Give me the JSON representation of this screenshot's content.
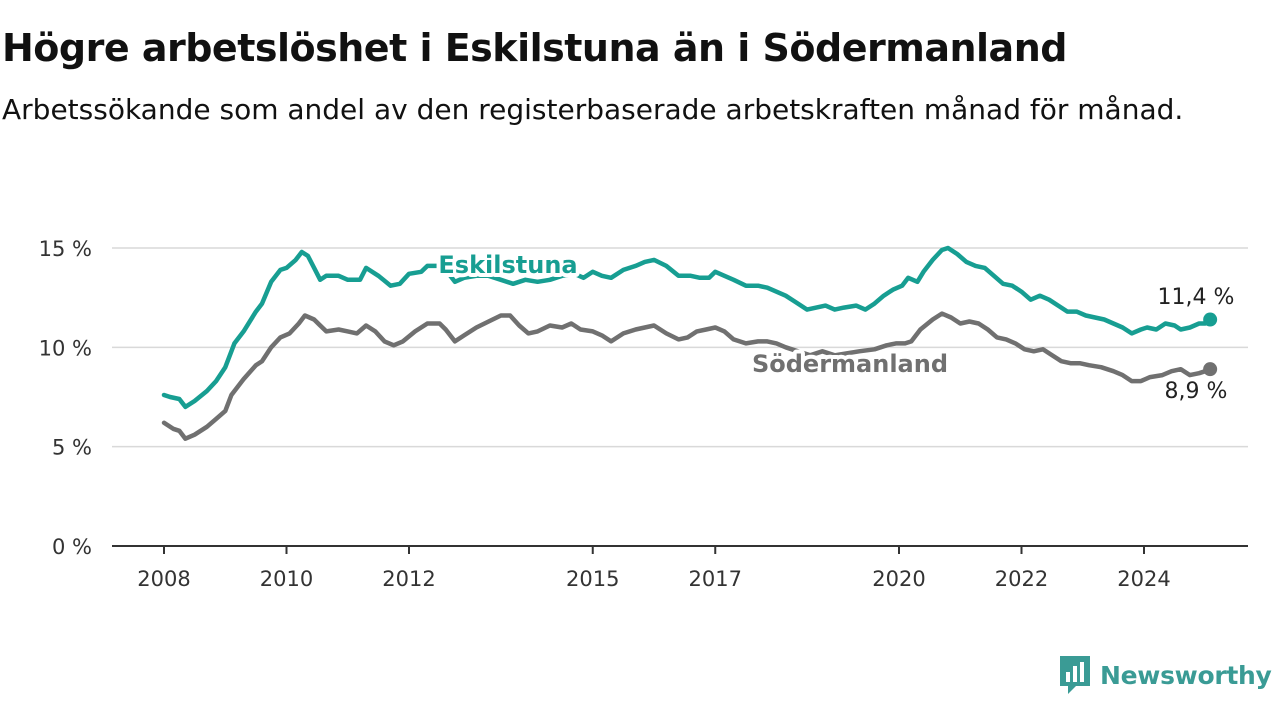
{
  "title": "Högre arbetslöshet i Eskilstuna än i Södermanland",
  "subtitle": "Arbetssökande som andel av den registerbaserade arbetskraften månad för månad.",
  "brand": {
    "name": "Newsworthy",
    "color": "#3a9b95",
    "icon": "newsworthy-logo-icon"
  },
  "chart_data": {
    "type": "line",
    "xlim": [
      2007.5,
      2025.5
    ],
    "ylim": [
      0,
      15
    ],
    "yticks": [
      0,
      5,
      10,
      15
    ],
    "ytick_labels": [
      "0 %",
      "5 %",
      "10 %",
      "15 %"
    ],
    "xticks": [
      2008,
      2010,
      2012,
      2015,
      2017,
      2020,
      2022,
      2024
    ],
    "xtick_labels": [
      "2008",
      "2010",
      "2012",
      "2015",
      "2017",
      "2020",
      "2022",
      "2024"
    ],
    "grid": true,
    "series": [
      {
        "name": "Eskilstuna",
        "color": "#179e92",
        "end_label": "11,4 %",
        "points": [
          [
            2008.0,
            7.6
          ],
          [
            2008.1,
            7.5
          ],
          [
            2008.25,
            7.4
          ],
          [
            2008.35,
            7.0
          ],
          [
            2008.5,
            7.3
          ],
          [
            2008.7,
            7.8
          ],
          [
            2008.85,
            8.3
          ],
          [
            2009.0,
            9.0
          ],
          [
            2009.15,
            10.2
          ],
          [
            2009.3,
            10.8
          ],
          [
            2009.5,
            11.8
          ],
          [
            2009.6,
            12.2
          ],
          [
            2009.75,
            13.3
          ],
          [
            2009.9,
            13.9
          ],
          [
            2010.0,
            14.0
          ],
          [
            2010.15,
            14.4
          ],
          [
            2010.25,
            14.8
          ],
          [
            2010.35,
            14.6
          ],
          [
            2010.45,
            14.0
          ],
          [
            2010.55,
            13.4
          ],
          [
            2010.65,
            13.6
          ],
          [
            2010.85,
            13.6
          ],
          [
            2011.0,
            13.4
          ],
          [
            2011.2,
            13.4
          ],
          [
            2011.3,
            14.0
          ],
          [
            2011.5,
            13.6
          ],
          [
            2011.7,
            13.1
          ],
          [
            2011.85,
            13.2
          ],
          [
            2012.0,
            13.7
          ],
          [
            2012.2,
            13.8
          ],
          [
            2012.3,
            14.1
          ],
          [
            2012.5,
            14.1
          ],
          [
            2012.6,
            13.9
          ],
          [
            2012.75,
            13.3
          ],
          [
            2012.9,
            13.5
          ],
          [
            2013.1,
            13.6
          ],
          [
            2013.3,
            13.6
          ],
          [
            2013.5,
            13.4
          ],
          [
            2013.7,
            13.2
          ],
          [
            2013.9,
            13.4
          ],
          [
            2014.1,
            13.3
          ],
          [
            2014.3,
            13.4
          ],
          [
            2014.5,
            13.6
          ],
          [
            2014.7,
            13.7
          ],
          [
            2014.85,
            13.5
          ],
          [
            2015.0,
            13.8
          ],
          [
            2015.15,
            13.6
          ],
          [
            2015.3,
            13.5
          ],
          [
            2015.5,
            13.9
          ],
          [
            2015.7,
            14.1
          ],
          [
            2015.85,
            14.3
          ],
          [
            2016.0,
            14.4
          ],
          [
            2016.2,
            14.1
          ],
          [
            2016.4,
            13.6
          ],
          [
            2016.6,
            13.6
          ],
          [
            2016.75,
            13.5
          ],
          [
            2016.9,
            13.5
          ],
          [
            2017.0,
            13.8
          ],
          [
            2017.15,
            13.6
          ],
          [
            2017.3,
            13.4
          ],
          [
            2017.5,
            13.1
          ],
          [
            2017.7,
            13.1
          ],
          [
            2017.85,
            13.0
          ],
          [
            2018.0,
            12.8
          ],
          [
            2018.15,
            12.6
          ],
          [
            2018.3,
            12.3
          ],
          [
            2018.5,
            11.9
          ],
          [
            2018.65,
            12.0
          ],
          [
            2018.8,
            12.1
          ],
          [
            2018.95,
            11.9
          ],
          [
            2019.1,
            12.0
          ],
          [
            2019.3,
            12.1
          ],
          [
            2019.45,
            11.9
          ],
          [
            2019.6,
            12.2
          ],
          [
            2019.75,
            12.6
          ],
          [
            2019.9,
            12.9
          ],
          [
            2020.05,
            13.1
          ],
          [
            2020.15,
            13.5
          ],
          [
            2020.3,
            13.3
          ],
          [
            2020.4,
            13.8
          ],
          [
            2020.55,
            14.4
          ],
          [
            2020.7,
            14.9
          ],
          [
            2020.8,
            15.0
          ],
          [
            2020.95,
            14.7
          ],
          [
            2021.1,
            14.3
          ],
          [
            2021.25,
            14.1
          ],
          [
            2021.4,
            14.0
          ],
          [
            2021.55,
            13.6
          ],
          [
            2021.7,
            13.2
          ],
          [
            2021.85,
            13.1
          ],
          [
            2022.0,
            12.8
          ],
          [
            2022.15,
            12.4
          ],
          [
            2022.3,
            12.6
          ],
          [
            2022.45,
            12.4
          ],
          [
            2022.6,
            12.1
          ],
          [
            2022.75,
            11.8
          ],
          [
            2022.9,
            11.8
          ],
          [
            2023.05,
            11.6
          ],
          [
            2023.2,
            11.5
          ],
          [
            2023.35,
            11.4
          ],
          [
            2023.5,
            11.2
          ],
          [
            2023.65,
            11.0
          ],
          [
            2023.8,
            10.7
          ],
          [
            2023.95,
            10.9
          ],
          [
            2024.05,
            11.0
          ],
          [
            2024.2,
            10.9
          ],
          [
            2024.35,
            11.2
          ],
          [
            2024.5,
            11.1
          ],
          [
            2024.6,
            10.9
          ],
          [
            2024.75,
            11.0
          ],
          [
            2024.9,
            11.2
          ],
          [
            2025.0,
            11.2
          ],
          [
            2025.08,
            11.4
          ]
        ]
      },
      {
        "name": "Södermanland",
        "color": "#707070",
        "end_label": "8,9 %",
        "points": [
          [
            2008.0,
            6.2
          ],
          [
            2008.15,
            5.9
          ],
          [
            2008.25,
            5.8
          ],
          [
            2008.35,
            5.4
          ],
          [
            2008.5,
            5.6
          ],
          [
            2008.7,
            6.0
          ],
          [
            2008.85,
            6.4
          ],
          [
            2009.0,
            6.8
          ],
          [
            2009.1,
            7.6
          ],
          [
            2009.3,
            8.4
          ],
          [
            2009.5,
            9.1
          ],
          [
            2009.6,
            9.3
          ],
          [
            2009.75,
            10.0
          ],
          [
            2009.9,
            10.5
          ],
          [
            2010.05,
            10.7
          ],
          [
            2010.2,
            11.2
          ],
          [
            2010.3,
            11.6
          ],
          [
            2010.45,
            11.4
          ],
          [
            2010.55,
            11.1
          ],
          [
            2010.65,
            10.8
          ],
          [
            2010.85,
            10.9
          ],
          [
            2011.0,
            10.8
          ],
          [
            2011.15,
            10.7
          ],
          [
            2011.3,
            11.1
          ],
          [
            2011.45,
            10.8
          ],
          [
            2011.6,
            10.3
          ],
          [
            2011.75,
            10.1
          ],
          [
            2011.9,
            10.3
          ],
          [
            2012.1,
            10.8
          ],
          [
            2012.3,
            11.2
          ],
          [
            2012.5,
            11.2
          ],
          [
            2012.6,
            10.9
          ],
          [
            2012.75,
            10.3
          ],
          [
            2012.9,
            10.6
          ],
          [
            2013.1,
            11.0
          ],
          [
            2013.3,
            11.3
          ],
          [
            2013.5,
            11.6
          ],
          [
            2013.65,
            11.6
          ],
          [
            2013.8,
            11.1
          ],
          [
            2013.95,
            10.7
          ],
          [
            2014.1,
            10.8
          ],
          [
            2014.3,
            11.1
          ],
          [
            2014.5,
            11.0
          ],
          [
            2014.65,
            11.2
          ],
          [
            2014.8,
            10.9
          ],
          [
            2015.0,
            10.8
          ],
          [
            2015.15,
            10.6
          ],
          [
            2015.3,
            10.3
          ],
          [
            2015.5,
            10.7
          ],
          [
            2015.7,
            10.9
          ],
          [
            2015.85,
            11.0
          ],
          [
            2016.0,
            11.1
          ],
          [
            2016.2,
            10.7
          ],
          [
            2016.4,
            10.4
          ],
          [
            2016.55,
            10.5
          ],
          [
            2016.7,
            10.8
          ],
          [
            2016.85,
            10.9
          ],
          [
            2017.0,
            11.0
          ],
          [
            2017.15,
            10.8
          ],
          [
            2017.3,
            10.4
          ],
          [
            2017.5,
            10.2
          ],
          [
            2017.7,
            10.3
          ],
          [
            2017.85,
            10.3
          ],
          [
            2018.0,
            10.2
          ],
          [
            2018.15,
            10.0
          ],
          [
            2018.35,
            9.8
          ],
          [
            2018.55,
            9.6
          ],
          [
            2018.75,
            9.8
          ],
          [
            2018.95,
            9.6
          ],
          [
            2019.15,
            9.7
          ],
          [
            2019.35,
            9.8
          ],
          [
            2019.6,
            9.9
          ],
          [
            2019.8,
            10.1
          ],
          [
            2019.95,
            10.2
          ],
          [
            2020.1,
            10.2
          ],
          [
            2020.2,
            10.3
          ],
          [
            2020.35,
            10.9
          ],
          [
            2020.55,
            11.4
          ],
          [
            2020.7,
            11.7
          ],
          [
            2020.85,
            11.5
          ],
          [
            2021.0,
            11.2
          ],
          [
            2021.15,
            11.3
          ],
          [
            2021.3,
            11.2
          ],
          [
            2021.45,
            10.9
          ],
          [
            2021.6,
            10.5
          ],
          [
            2021.75,
            10.4
          ],
          [
            2021.9,
            10.2
          ],
          [
            2022.05,
            9.9
          ],
          [
            2022.2,
            9.8
          ],
          [
            2022.35,
            9.9
          ],
          [
            2022.5,
            9.6
          ],
          [
            2022.65,
            9.3
          ],
          [
            2022.8,
            9.2
          ],
          [
            2022.95,
            9.2
          ],
          [
            2023.1,
            9.1
          ],
          [
            2023.3,
            9.0
          ],
          [
            2023.5,
            8.8
          ],
          [
            2023.65,
            8.6
          ],
          [
            2023.8,
            8.3
          ],
          [
            2023.95,
            8.3
          ],
          [
            2024.1,
            8.5
          ],
          [
            2024.3,
            8.6
          ],
          [
            2024.45,
            8.8
          ],
          [
            2024.6,
            8.9
          ],
          [
            2024.75,
            8.6
          ],
          [
            2024.9,
            8.7
          ],
          [
            2025.0,
            8.8
          ],
          [
            2025.08,
            8.9
          ]
        ]
      }
    ]
  }
}
